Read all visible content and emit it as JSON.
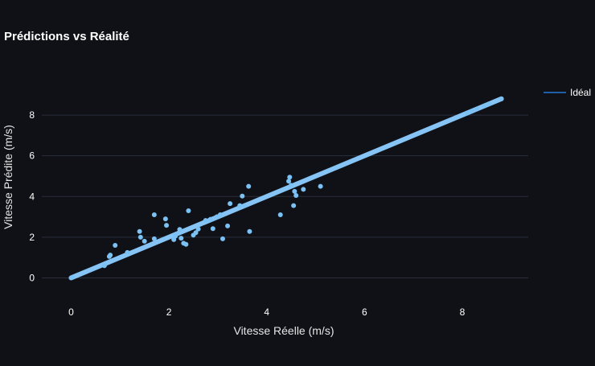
{
  "chart_data": {
    "type": "scatter",
    "title": "Prédictions vs Réalité",
    "xlabel": "Vitesse Réelle (m/s)",
    "ylabel": "Vitesse Prédite (m/s)",
    "xlim": [
      -0.6,
      9.35
    ],
    "ylim": [
      -1.05,
      9.9
    ],
    "xticks": [
      "0",
      "2",
      "4",
      "6",
      "8"
    ],
    "yticks": [
      "0",
      "2",
      "4",
      "6",
      "8"
    ],
    "grid": true,
    "legend_position": "top-right",
    "colors": {
      "background": "#0f1117",
      "grid": "#2b2f3a",
      "text": "#ffffff",
      "points": "#7cc1f4",
      "ideal_line": "#86c4f5",
      "legend_line": "#1f5fa8"
    },
    "series": [
      {
        "name": "Idéal",
        "kind": "line",
        "points": [
          [
            0,
            0
          ],
          [
            8.8,
            8.8
          ]
        ]
      },
      {
        "kind": "scatter",
        "points": [
          [
            0.02,
            0.02
          ],
          [
            0.68,
            0.6
          ],
          [
            0.78,
            1.05
          ],
          [
            0.8,
            1.12
          ],
          [
            0.9,
            1.6
          ],
          [
            1.15,
            1.25
          ],
          [
            1.4,
            2.28
          ],
          [
            1.42,
            2.0
          ],
          [
            1.5,
            1.8
          ],
          [
            1.7,
            3.1
          ],
          [
            1.7,
            1.92
          ],
          [
            1.93,
            2.9
          ],
          [
            1.95,
            2.58
          ],
          [
            2.1,
            1.88
          ],
          [
            2.13,
            2.05
          ],
          [
            2.15,
            2.15
          ],
          [
            2.22,
            2.38
          ],
          [
            2.25,
            1.95
          ],
          [
            2.3,
            1.7
          ],
          [
            2.35,
            1.65
          ],
          [
            2.4,
            3.3
          ],
          [
            2.5,
            2.1
          ],
          [
            2.55,
            2.22
          ],
          [
            2.6,
            2.4
          ],
          [
            2.75,
            2.82
          ],
          [
            2.85,
            2.88
          ],
          [
            2.9,
            2.42
          ],
          [
            2.98,
            3.0
          ],
          [
            3.05,
            3.1
          ],
          [
            3.1,
            1.92
          ],
          [
            3.2,
            2.55
          ],
          [
            3.25,
            3.65
          ],
          [
            3.45,
            3.55
          ],
          [
            3.5,
            4.02
          ],
          [
            3.55,
            3.55
          ],
          [
            3.63,
            4.5
          ],
          [
            3.65,
            2.28
          ],
          [
            4.28,
            3.1
          ],
          [
            4.45,
            4.75
          ],
          [
            4.47,
            4.95
          ],
          [
            4.5,
            4.55
          ],
          [
            4.55,
            3.55
          ],
          [
            4.57,
            4.25
          ],
          [
            4.6,
            4.05
          ],
          [
            4.75,
            4.35
          ],
          [
            5.1,
            4.5
          ],
          [
            8.1,
            8.1
          ],
          [
            8.2,
            8.2
          ],
          [
            8.3,
            8.3
          ],
          [
            8.45,
            8.45
          ],
          [
            8.55,
            8.55
          ],
          [
            8.8,
            8.8
          ]
        ]
      }
    ]
  }
}
